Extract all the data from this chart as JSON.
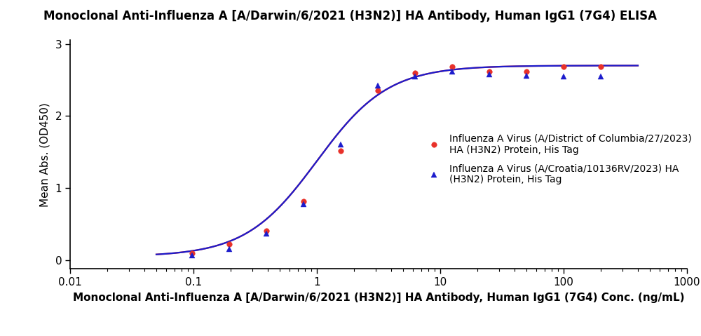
{
  "title": "Monoclonal Anti-Influenza A [A/Darwin/6/2021 (H3N2)] HA Antibody, Human IgG1 (7G4) ELISA",
  "xlabel": "Monoclonal Anti-Influenza A [A/Darwin/6/2021 (H3N2)] HA Antibody, Human IgG1 (7G4) Conc. (ng/mL)",
  "ylabel": "Mean Abs. (OD450)",
  "series1_label": "Influenza A Virus (A/District of Columbia/27/2023)\nHA (H3N2) Protein, His Tag",
  "series2_label": "Influenza A Virus (A/Croatia/10136RV/2023) HA\n(H3N2) Protein, His Tag",
  "series1_color": "#E8312A",
  "series2_color": "#1C1CCC",
  "series1_x": [
    0.098,
    0.195,
    0.391,
    0.781,
    1.563,
    3.125,
    6.25,
    12.5,
    25,
    50,
    100,
    200
  ],
  "series1_y": [
    0.095,
    0.22,
    0.41,
    0.82,
    1.52,
    2.35,
    2.6,
    2.68,
    2.62,
    2.62,
    2.68,
    2.68
  ],
  "series2_x": [
    0.098,
    0.195,
    0.391,
    0.781,
    1.563,
    3.125,
    6.25,
    12.5,
    25,
    50,
    100,
    200
  ],
  "series2_y": [
    0.068,
    0.155,
    0.37,
    0.78,
    1.6,
    2.42,
    2.55,
    2.62,
    2.58,
    2.56,
    2.55,
    2.55
  ],
  "ylim": [
    -0.12,
    3.05
  ],
  "yticks": [
    0,
    1,
    2,
    3
  ],
  "xlim_log": [
    0.01,
    1000
  ],
  "fit_xmin": 0.05,
  "fit_xmax": 400,
  "background_color": "#FFFFFF",
  "title_fontsize": 12,
  "label_fontsize": 11,
  "tick_fontsize": 11,
  "legend_fontsize": 10
}
